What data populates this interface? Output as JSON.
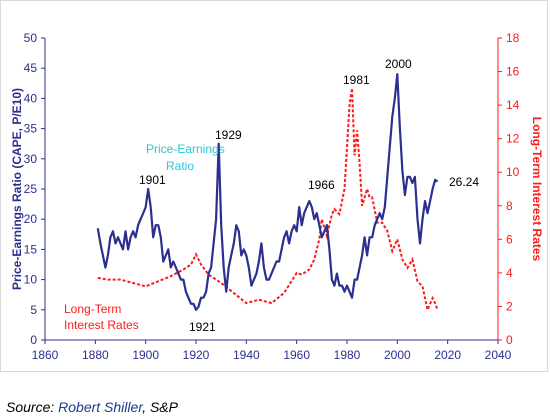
{
  "chart_data": {
    "type": "line",
    "x_label": "",
    "y_left_label": "Price-Earnings Ratio (CAPE, P/E10)",
    "y_right_label": "Long-Term Interest Rates",
    "x_ticks": [
      1860,
      1880,
      1900,
      1920,
      1940,
      1960,
      1980,
      2000,
      2020,
      2040
    ],
    "y_left_ticks": [
      0,
      5,
      10,
      15,
      20,
      25,
      30,
      35,
      40,
      45,
      50
    ],
    "y_right_ticks": [
      0,
      2,
      4,
      6,
      8,
      10,
      12,
      14,
      16,
      18
    ],
    "xlim": [
      1860,
      2040
    ],
    "ylim_left": [
      0,
      50
    ],
    "ylim_right": [
      0,
      18
    ],
    "grid": false,
    "colors": {
      "cape": "#2b2f8f",
      "rates": "#ff1a1a",
      "axis": "#2b2f8f"
    },
    "series": [
      {
        "name": "Price-Earnings Ratio",
        "axis": "left",
        "x": [
          1881,
          1882,
          1883,
          1884,
          1885,
          1886,
          1887,
          1888,
          1889,
          1890,
          1891,
          1892,
          1893,
          1894,
          1895,
          1896,
          1897,
          1898,
          1899,
          1900,
          1901,
          1902,
          1903,
          1904,
          1905,
          1906,
          1907,
          1908,
          1909,
          1910,
          1911,
          1912,
          1913,
          1914,
          1915,
          1916,
          1917,
          1918,
          1919,
          1920,
          1921,
          1922,
          1923,
          1924,
          1925,
          1926,
          1927,
          1928,
          1929,
          1930,
          1931,
          1932,
          1933,
          1934,
          1935,
          1936,
          1937,
          1938,
          1939,
          1940,
          1941,
          1942,
          1943,
          1944,
          1945,
          1946,
          1947,
          1948,
          1949,
          1950,
          1951,
          1952,
          1953,
          1954,
          1955,
          1956,
          1957,
          1958,
          1959,
          1960,
          1961,
          1962,
          1963,
          1964,
          1965,
          1966,
          1967,
          1968,
          1969,
          1970,
          1971,
          1972,
          1973,
          1974,
          1975,
          1976,
          1977,
          1978,
          1979,
          1980,
          1981,
          1982,
          1983,
          1984,
          1985,
          1986,
          1987,
          1988,
          1989,
          1990,
          1991,
          1992,
          1993,
          1994,
          1995,
          1996,
          1997,
          1998,
          1999,
          2000,
          2001,
          2002,
          2003,
          2004,
          2005,
          2006,
          2007,
          2008,
          2009,
          2010,
          2011,
          2012,
          2013,
          2014,
          2015,
          2016
        ],
        "values": [
          18.5,
          16,
          14,
          12,
          14,
          17,
          18,
          16,
          17,
          16,
          15,
          18,
          15,
          17,
          18,
          17,
          19,
          20,
          21,
          22,
          25,
          22,
          17,
          19,
          19,
          17,
          13,
          14,
          15,
          12,
          13,
          12,
          11,
          10,
          10,
          8,
          7,
          6,
          6,
          5,
          5.5,
          7,
          7,
          8,
          11,
          12,
          16,
          20,
          32.5,
          19,
          12,
          8,
          12,
          14,
          16,
          19,
          18,
          14,
          15,
          14,
          12,
          9,
          10,
          11,
          13,
          16,
          12,
          10,
          10,
          11,
          12,
          13,
          13,
          15,
          17,
          18,
          16,
          18,
          19,
          18,
          22,
          19,
          21,
          22,
          23,
          22,
          20,
          21,
          19,
          17,
          18,
          19,
          15,
          10,
          9,
          11,
          9,
          9,
          8,
          9,
          8,
          7,
          10,
          10,
          12,
          14,
          17,
          14,
          17,
          17,
          19,
          20,
          21,
          20,
          22,
          27,
          32,
          37,
          40,
          44,
          35,
          28,
          24,
          27,
          27,
          26,
          27,
          20,
          16,
          20,
          23,
          21,
          23,
          25,
          26.5,
          26.24
        ]
      },
      {
        "name": "Long-Term Interest Rates",
        "axis": "right",
        "x": [
          1881,
          1885,
          1890,
          1895,
          1900,
          1905,
          1910,
          1915,
          1918,
          1920,
          1922,
          1925,
          1930,
          1935,
          1940,
          1945,
          1950,
          1955,
          1960,
          1962,
          1965,
          1967,
          1969,
          1970,
          1972,
          1974,
          1975,
          1977,
          1979,
          1980,
          1981,
          1982,
          1983,
          1984,
          1985,
          1986,
          1987,
          1988,
          1989,
          1990,
          1992,
          1994,
          1996,
          1998,
          2000,
          2002,
          2004,
          2006,
          2008,
          2010,
          2012,
          2014,
          2015,
          2016
        ],
        "values": [
          3.7,
          3.6,
          3.6,
          3.4,
          3.2,
          3.5,
          3.8,
          4.2,
          4.5,
          5.1,
          4.5,
          3.9,
          3.4,
          2.8,
          2.2,
          2.4,
          2.2,
          2.8,
          4.0,
          3.9,
          4.2,
          4.8,
          6.0,
          7.2,
          6.2,
          7.5,
          7.8,
          7.5,
          9.0,
          11.5,
          14.0,
          15.0,
          11.0,
          12.5,
          10.5,
          8.0,
          8.5,
          9.0,
          8.5,
          8.5,
          7.0,
          7.0,
          6.5,
          5.3,
          6.0,
          4.8,
          4.3,
          4.8,
          3.5,
          3.2,
          1.8,
          2.5,
          2.2,
          1.8
        ]
      }
    ],
    "annotations": {
      "y1901": "1901",
      "y1929": "1929",
      "y1921": "1921",
      "y1966": "1966",
      "y1981": "1981",
      "y2000": "2000",
      "latest": "26.24",
      "cape_label_1": "Price-Earnings",
      "cape_label_2": "Ratio",
      "rate_label_1": "Long-Term",
      "rate_label_2": "Interest Rates"
    }
  },
  "source": {
    "prefix": "Source: ",
    "name": "Robert Shiller",
    "suffix": ", S&P"
  }
}
